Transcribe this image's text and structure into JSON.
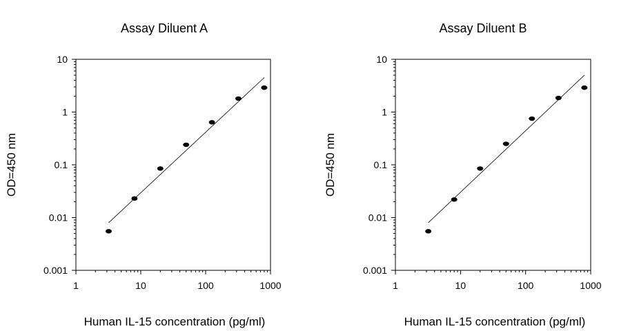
{
  "chart_data": [
    {
      "type": "scatter",
      "title": "Assay Diluent A",
      "xlabel": "Human IL-15 concentration (pg/ml)",
      "ylabel": "OD=450 nm",
      "x_scale": "log",
      "y_scale": "log",
      "xlim": [
        1,
        1000
      ],
      "ylim": [
        0.001,
        10
      ],
      "x_ticks": [
        1,
        10,
        100,
        1000
      ],
      "x_tick_labels": [
        "1",
        "10",
        "100",
        "1000"
      ],
      "y_ticks": [
        0.001,
        0.01,
        0.1,
        1,
        10
      ],
      "y_tick_labels": [
        "0.001",
        "0.01",
        "0.1",
        "1",
        "10"
      ],
      "grid": false,
      "series": [
        {
          "x": [
            3.2,
            8,
            20,
            50,
            125,
            320,
            800
          ],
          "y": [
            0.0055,
            0.023,
            0.085,
            0.24,
            0.64,
            1.8,
            2.9
          ]
        }
      ],
      "fit_line": {
        "x": [
          3.2,
          800
        ],
        "y": [
          0.008,
          4.5
        ]
      }
    },
    {
      "type": "scatter",
      "title": "Assay Diluent B",
      "xlabel": "Human IL-15 concentration (pg/ml)",
      "ylabel": "OD=450 nm",
      "x_scale": "log",
      "y_scale": "log",
      "xlim": [
        1,
        1000
      ],
      "ylim": [
        0.001,
        10
      ],
      "x_ticks": [
        1,
        10,
        100,
        1000
      ],
      "x_tick_labels": [
        "1",
        "10",
        "100",
        "1000"
      ],
      "y_ticks": [
        0.001,
        0.01,
        0.1,
        1,
        10
      ],
      "y_tick_labels": [
        "0.001",
        "0.01",
        "0.1",
        "1",
        "10"
      ],
      "grid": false,
      "series": [
        {
          "x": [
            3.2,
            8,
            20,
            50,
            125,
            320,
            800
          ],
          "y": [
            0.0055,
            0.022,
            0.085,
            0.25,
            0.75,
            1.85,
            2.9
          ]
        }
      ],
      "fit_line": {
        "x": [
          3.2,
          800
        ],
        "y": [
          0.008,
          5.0
        ]
      }
    }
  ]
}
